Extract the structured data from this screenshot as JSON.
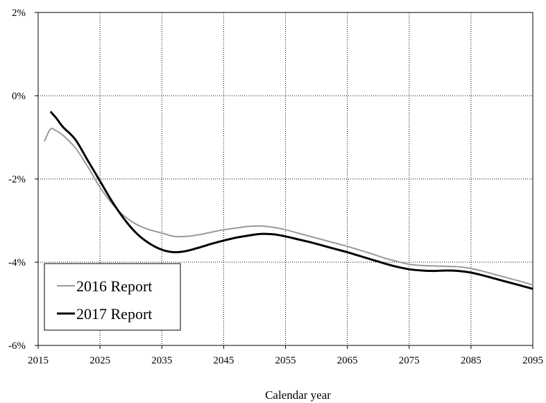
{
  "chart_data": {
    "type": "line",
    "title": "",
    "xlabel": "Calendar year",
    "ylabel": "",
    "xlim": [
      2015,
      2095
    ],
    "ylim": [
      -6,
      2
    ],
    "x_ticks": [
      2015,
      2025,
      2035,
      2045,
      2055,
      2065,
      2075,
      2085,
      2095
    ],
    "y_ticks": [
      2,
      0,
      -2,
      -4,
      -6
    ],
    "y_tick_labels": [
      "2%",
      "0%",
      "-2%",
      "-4%",
      "-6%"
    ],
    "grid": true,
    "legend_position": "bottom-left",
    "series": [
      {
        "name": "2016 Report",
        "color": "#999999",
        "x": [
          2016,
          2017,
          2018,
          2019,
          2021,
          2023,
          2025,
          2027,
          2029,
          2031,
          2033,
          2035,
          2037,
          2039,
          2041,
          2043,
          2045,
          2047,
          2049,
          2051,
          2053,
          2055,
          2057,
          2059,
          2061,
          2063,
          2065,
          2067,
          2069,
          2071,
          2073,
          2075,
          2077,
          2079,
          2081,
          2083,
          2085,
          2087,
          2089,
          2091,
          2093,
          2095
        ],
        "y": [
          -1.1,
          -0.8,
          -0.85,
          -0.95,
          -1.25,
          -1.7,
          -2.2,
          -2.6,
          -2.9,
          -3.1,
          -3.22,
          -3.3,
          -3.38,
          -3.38,
          -3.34,
          -3.28,
          -3.22,
          -3.18,
          -3.14,
          -3.13,
          -3.16,
          -3.22,
          -3.3,
          -3.38,
          -3.46,
          -3.54,
          -3.62,
          -3.71,
          -3.8,
          -3.9,
          -3.98,
          -4.05,
          -4.08,
          -4.09,
          -4.1,
          -4.11,
          -4.15,
          -4.22,
          -4.3,
          -4.38,
          -4.46,
          -4.55
        ]
      },
      {
        "name": "2017 Report",
        "color": "#000000",
        "x": [
          2017,
          2018,
          2019,
          2021,
          2023,
          2025,
          2027,
          2029,
          2031,
          2033,
          2035,
          2037,
          2039,
          2041,
          2043,
          2045,
          2047,
          2049,
          2051,
          2053,
          2055,
          2057,
          2059,
          2061,
          2063,
          2065,
          2067,
          2069,
          2071,
          2073,
          2075,
          2077,
          2079,
          2081,
          2083,
          2085,
          2087,
          2089,
          2091,
          2093,
          2095
        ],
        "y": [
          -0.38,
          -0.55,
          -0.75,
          -1.05,
          -1.55,
          -2.05,
          -2.55,
          -2.98,
          -3.32,
          -3.55,
          -3.7,
          -3.76,
          -3.73,
          -3.65,
          -3.56,
          -3.48,
          -3.41,
          -3.36,
          -3.32,
          -3.33,
          -3.38,
          -3.45,
          -3.52,
          -3.6,
          -3.68,
          -3.76,
          -3.85,
          -3.94,
          -4.03,
          -4.11,
          -4.17,
          -4.2,
          -4.21,
          -4.2,
          -4.21,
          -4.25,
          -4.32,
          -4.4,
          -4.48,
          -4.56,
          -4.64
        ]
      }
    ]
  }
}
